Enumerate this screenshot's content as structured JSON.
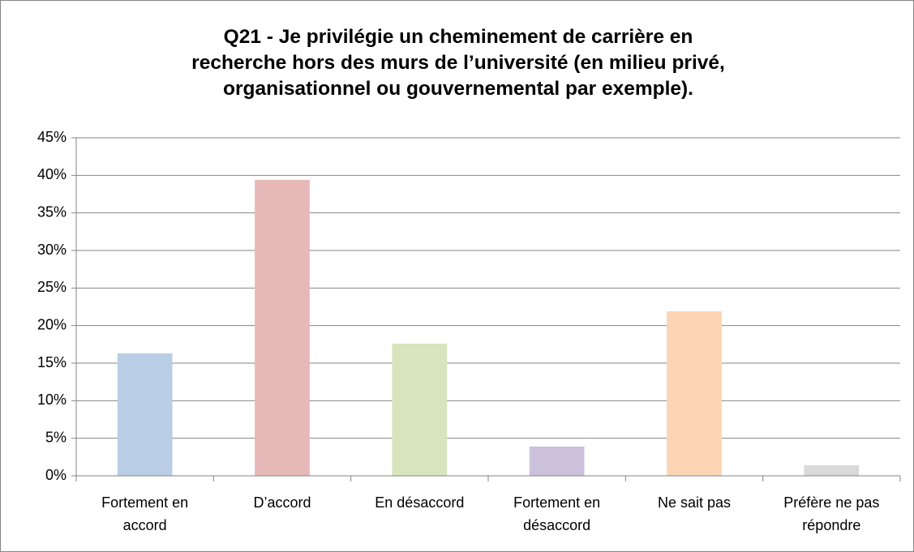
{
  "chart_data": {
    "type": "bar",
    "title": "Q21 - Je privilégie un cheminement de carrière en\nrecherche hors des murs de l’université (en milieu privé,\norganisationnel ou gouvernemental par exemple).",
    "categories": [
      "Fortement en\naccord",
      "D’accord",
      "En désaccord",
      "Fortement en\ndésaccord",
      "Ne sait pas",
      "Préfère ne pas\nrépondre"
    ],
    "values": [
      16.3,
      39.4,
      17.6,
      3.9,
      21.9,
      1.4
    ],
    "colors": [
      "#b9cde5",
      "#e6b9b8",
      "#d7e4bd",
      "#ccc1da",
      "#fcd5b5",
      "#d9d9d9"
    ],
    "ylim": [
      0,
      45
    ],
    "yticks": [
      {
        "value": 0,
        "label": "0%"
      },
      {
        "value": 5,
        "label": "5%"
      },
      {
        "value": 10,
        "label": "10%"
      },
      {
        "value": 15,
        "label": "15%"
      },
      {
        "value": 20,
        "label": "20%"
      },
      {
        "value": 25,
        "label": "25%"
      },
      {
        "value": 30,
        "label": "30%"
      },
      {
        "value": 35,
        "label": "35%"
      },
      {
        "value": 40,
        "label": "40%"
      },
      {
        "value": 45,
        "label": "45%"
      }
    ],
    "grid": true
  }
}
